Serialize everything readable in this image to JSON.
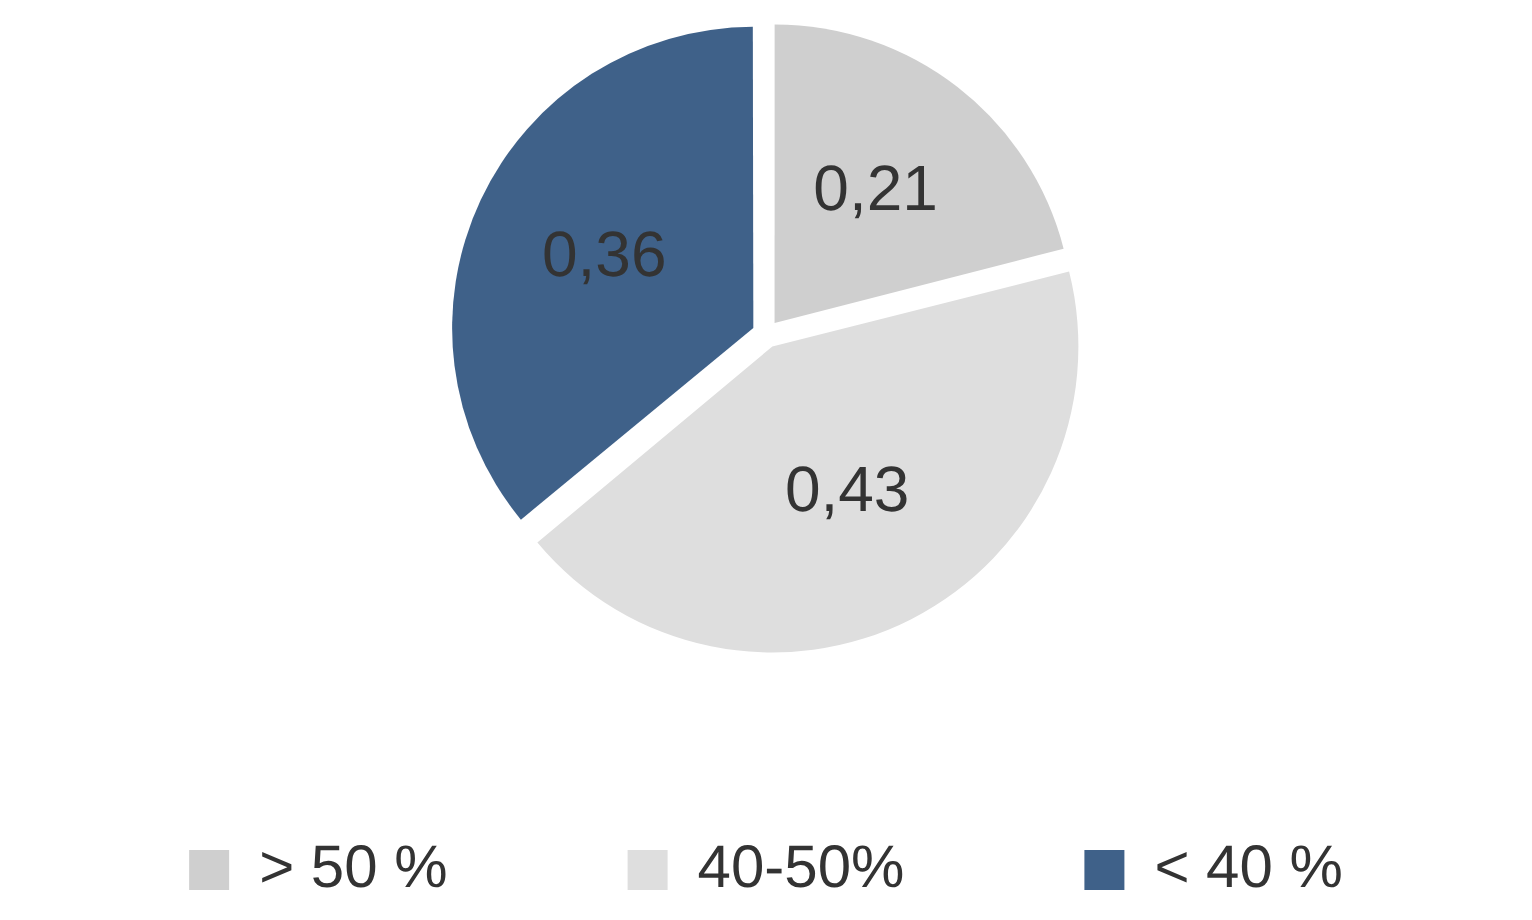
{
  "chart_data": {
    "type": "pie",
    "categories": [
      "> 50 %",
      "40-50%",
      "< 40 %"
    ],
    "values": [
      0.21,
      0.43,
      0.36
    ],
    "colors": [
      "#cfcfcf",
      "#dedede",
      "#3f6189"
    ],
    "value_labels": [
      "0,21",
      "0,43",
      "0,36"
    ],
    "legend": "bottom"
  }
}
